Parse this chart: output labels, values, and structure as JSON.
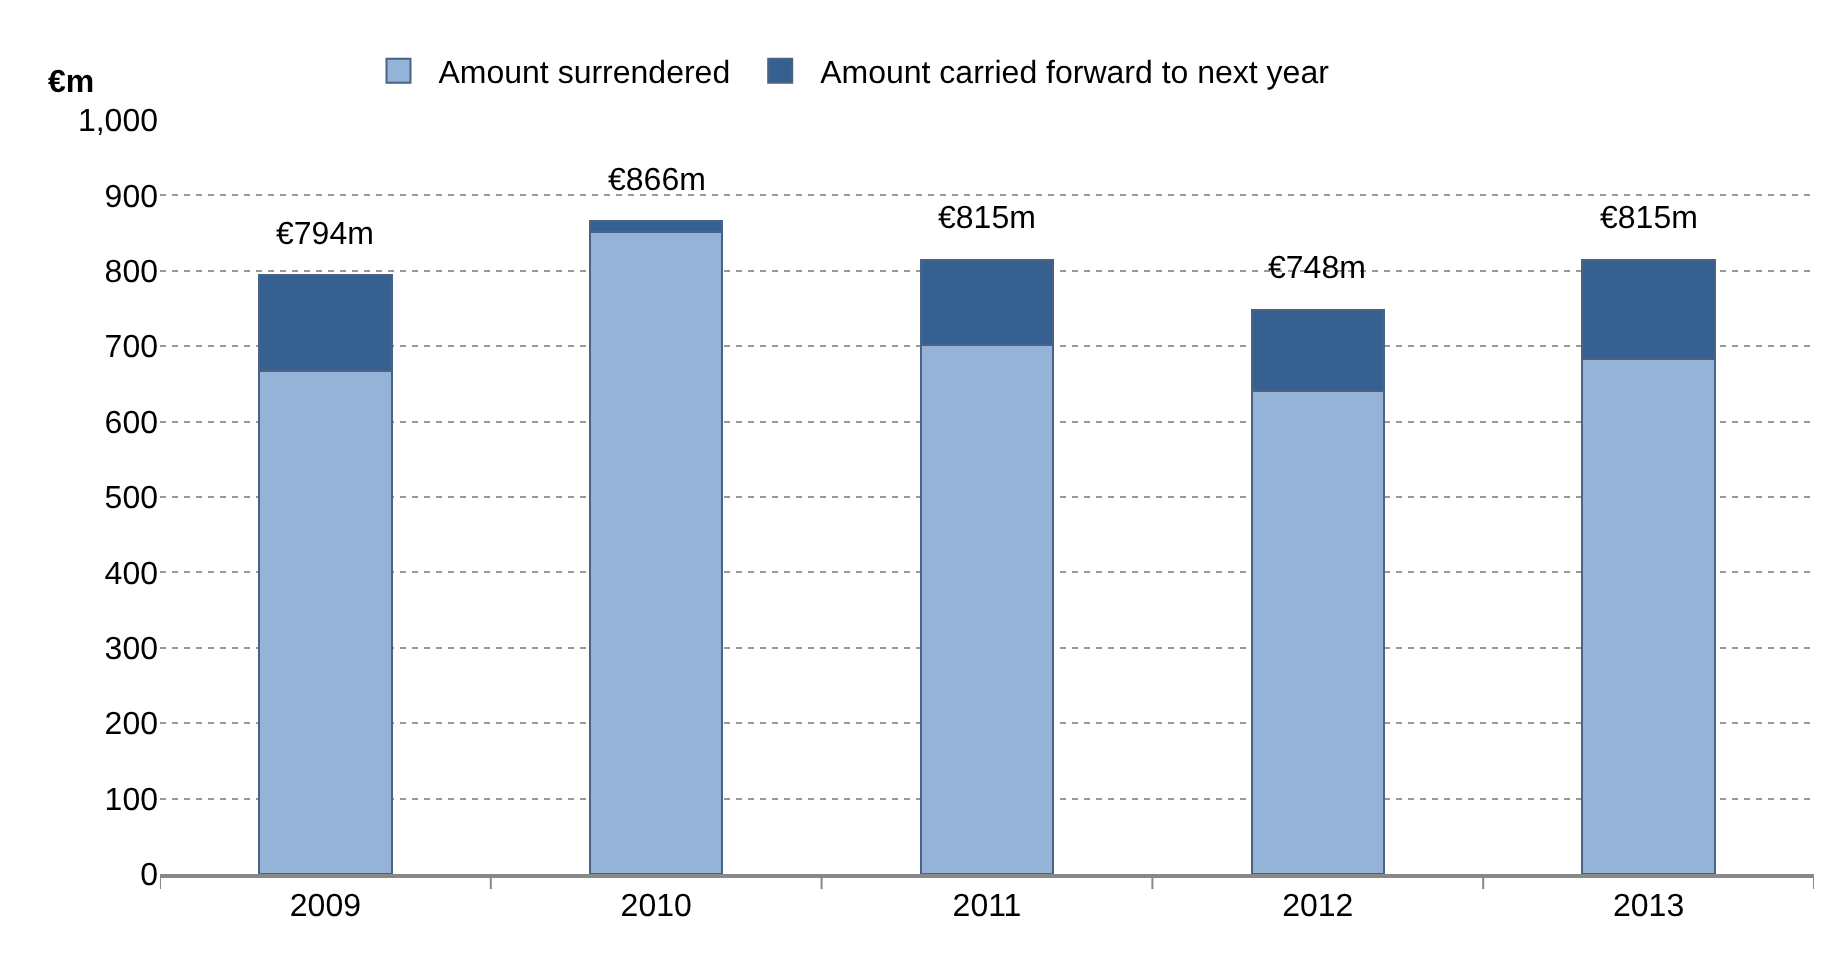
{
  "chart_data": {
    "type": "bar",
    "stacked": true,
    "ylabel": "€m",
    "categories": [
      "2009",
      "2010",
      "2011",
      "2012",
      "2013"
    ],
    "series": [
      {
        "name": "Amount surrendered",
        "color": "#95b3d7",
        "values": [
          667,
          852,
          701,
          640,
          683
        ]
      },
      {
        "name": "Amount carried forward to next year",
        "color": "#366092",
        "values": [
          127,
          14,
          114,
          108,
          132
        ]
      }
    ],
    "totals": [
      "€794m",
      "€866m",
      "€815m",
      "€748m",
      "€815m"
    ],
    "ylim": [
      0,
      1000
    ],
    "yticks": [
      0,
      100,
      200,
      300,
      400,
      500,
      600,
      700,
      800,
      900,
      {
        "value": 1000,
        "label": "1,000"
      }
    ],
    "grid": "y",
    "legend": "top"
  }
}
